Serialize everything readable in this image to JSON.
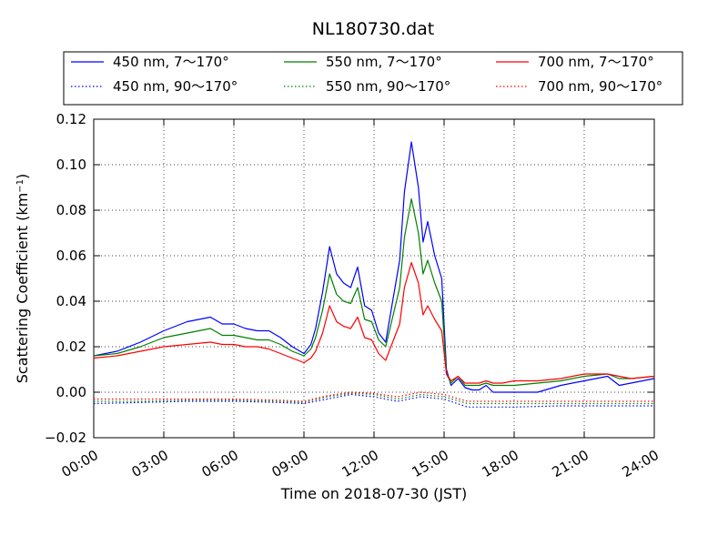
{
  "chart_data": {
    "type": "line",
    "title": "NL180730.dat",
    "xlabel": "Time on 2018-07-30 (JST)",
    "ylabel": "Scattering Coefficient (km",
    "ylabel_sup": "−1",
    "ylabel_close": ")",
    "xlim": [
      0,
      24
    ],
    "ylim": [
      -0.02,
      0.12
    ],
    "x_ticks": [
      0,
      3,
      6,
      9,
      12,
      15,
      18,
      21,
      24
    ],
    "x_tick_labels": [
      "00:00",
      "03:00",
      "06:00",
      "09:00",
      "12:00",
      "15:00",
      "18:00",
      "21:00",
      "24:00"
    ],
    "y_ticks": [
      -0.02,
      0.0,
      0.02,
      0.04,
      0.06,
      0.08,
      0.1,
      0.12
    ],
    "y_tick_labels": [
      "−0.02",
      "0.00",
      "0.02",
      "0.04",
      "0.06",
      "0.08",
      "0.10",
      "0.12"
    ],
    "grid": true,
    "legend_position": "top",
    "x_unit": "hours",
    "series": [
      {
        "name": "450 nm, 7～170°",
        "color": "#0000ff",
        "dash": "solid",
        "x": [
          0,
          1,
          2,
          3,
          4,
          5,
          5.5,
          6,
          6.5,
          7,
          7.5,
          8,
          8.5,
          9,
          9.3,
          9.5,
          9.8,
          10.1,
          10.4,
          10.7,
          11,
          11.3,
          11.6,
          11.9,
          12.2,
          12.5,
          12.8,
          13.1,
          13.3,
          13.6,
          13.9,
          14.1,
          14.3,
          14.6,
          14.9,
          15.1,
          15.3,
          15.6,
          15.9,
          16.2,
          16.5,
          16.8,
          17.1,
          17.5,
          18,
          19,
          20,
          21,
          22,
          22.5,
          23,
          24
        ],
        "y": [
          0.016,
          0.018,
          0.022,
          0.027,
          0.031,
          0.033,
          0.03,
          0.03,
          0.028,
          0.027,
          0.027,
          0.024,
          0.02,
          0.017,
          0.021,
          0.028,
          0.044,
          0.064,
          0.052,
          0.048,
          0.046,
          0.055,
          0.038,
          0.036,
          0.026,
          0.022,
          0.04,
          0.058,
          0.088,
          0.11,
          0.09,
          0.066,
          0.075,
          0.06,
          0.05,
          0.01,
          0.003,
          0.006,
          0.002,
          0.001,
          0.001,
          0.003,
          0.0,
          0.0,
          0.0,
          0.0,
          0.003,
          0.005,
          0.007,
          0.003,
          0.004,
          0.006
        ]
      },
      {
        "name": "450 nm, 90～170°",
        "color": "#0000ff",
        "dash": "dotted",
        "x": [
          0,
          2,
          4,
          6,
          8,
          9,
          10,
          11,
          12,
          13,
          14,
          15,
          16,
          18,
          20,
          22,
          24
        ],
        "y": [
          -0.005,
          -0.0045,
          -0.004,
          -0.004,
          -0.0045,
          -0.005,
          -0.003,
          -0.001,
          -0.002,
          -0.004,
          -0.002,
          -0.003,
          -0.0065,
          -0.0065,
          -0.006,
          -0.006,
          -0.006
        ]
      },
      {
        "name": "550 nm, 7～170°",
        "color": "#008000",
        "dash": "solid",
        "x": [
          0,
          1,
          2,
          3,
          4,
          5,
          5.5,
          6,
          6.5,
          7,
          7.5,
          8,
          8.5,
          9,
          9.3,
          9.5,
          9.8,
          10.1,
          10.4,
          10.7,
          11,
          11.3,
          11.6,
          11.9,
          12.2,
          12.5,
          12.8,
          13.1,
          13.3,
          13.6,
          13.9,
          14.1,
          14.3,
          14.6,
          14.9,
          15.1,
          15.3,
          15.6,
          15.9,
          16.2,
          16.5,
          16.8,
          17.1,
          17.5,
          18,
          19,
          20,
          21,
          22,
          22.5,
          23,
          24
        ],
        "y": [
          0.016,
          0.017,
          0.02,
          0.024,
          0.026,
          0.028,
          0.025,
          0.025,
          0.024,
          0.023,
          0.023,
          0.021,
          0.018,
          0.016,
          0.019,
          0.024,
          0.036,
          0.052,
          0.043,
          0.04,
          0.039,
          0.046,
          0.032,
          0.031,
          0.023,
          0.02,
          0.033,
          0.046,
          0.068,
          0.085,
          0.07,
          0.052,
          0.058,
          0.048,
          0.04,
          0.008,
          0.004,
          0.007,
          0.003,
          0.003,
          0.003,
          0.004,
          0.003,
          0.003,
          0.003,
          0.004,
          0.005,
          0.007,
          0.008,
          0.006,
          0.006,
          0.007
        ]
      },
      {
        "name": "550 nm, 90～170°",
        "color": "#008000",
        "dash": "dotted",
        "x": [
          0,
          2,
          4,
          6,
          8,
          9,
          10,
          11,
          12,
          13,
          14,
          15,
          16,
          18,
          20,
          22,
          24
        ],
        "y": [
          -0.004,
          -0.004,
          -0.0035,
          -0.0035,
          -0.004,
          -0.0045,
          -0.002,
          -0.0005,
          -0.001,
          -0.003,
          -0.001,
          -0.002,
          -0.005,
          -0.005,
          -0.005,
          -0.005,
          -0.005
        ]
      },
      {
        "name": "700 nm, 7～170°",
        "color": "#ff0000",
        "dash": "solid",
        "x": [
          0,
          1,
          2,
          3,
          4,
          5,
          5.5,
          6,
          6.5,
          7,
          7.5,
          8,
          8.5,
          9,
          9.3,
          9.5,
          9.8,
          10.1,
          10.4,
          10.7,
          11,
          11.3,
          11.6,
          11.9,
          12.2,
          12.5,
          12.8,
          13.1,
          13.3,
          13.6,
          13.9,
          14.1,
          14.3,
          14.6,
          14.9,
          15.1,
          15.3,
          15.6,
          15.9,
          16.2,
          16.5,
          16.8,
          17.1,
          17.5,
          18,
          19,
          20,
          21,
          22,
          22.5,
          23,
          24
        ],
        "y": [
          0.015,
          0.016,
          0.018,
          0.02,
          0.021,
          0.022,
          0.021,
          0.021,
          0.02,
          0.02,
          0.019,
          0.017,
          0.015,
          0.013,
          0.015,
          0.018,
          0.026,
          0.038,
          0.031,
          0.029,
          0.028,
          0.033,
          0.024,
          0.023,
          0.017,
          0.014,
          0.022,
          0.03,
          0.046,
          0.057,
          0.048,
          0.034,
          0.038,
          0.032,
          0.027,
          0.008,
          0.005,
          0.007,
          0.004,
          0.004,
          0.004,
          0.005,
          0.004,
          0.004,
          0.005,
          0.005,
          0.006,
          0.008,
          0.008,
          0.007,
          0.006,
          0.007
        ]
      },
      {
        "name": "700 nm, 90～170°",
        "color": "#ff0000",
        "dash": "dotted",
        "x": [
          0,
          2,
          4,
          6,
          8,
          9,
          10,
          11,
          12,
          13,
          14,
          15,
          16,
          18,
          20,
          22,
          24
        ],
        "y": [
          -0.003,
          -0.003,
          -0.003,
          -0.003,
          -0.0035,
          -0.004,
          -0.0015,
          0.0,
          -0.0005,
          -0.002,
          0.0,
          -0.001,
          -0.004,
          -0.004,
          -0.004,
          -0.004,
          -0.004
        ]
      }
    ]
  }
}
